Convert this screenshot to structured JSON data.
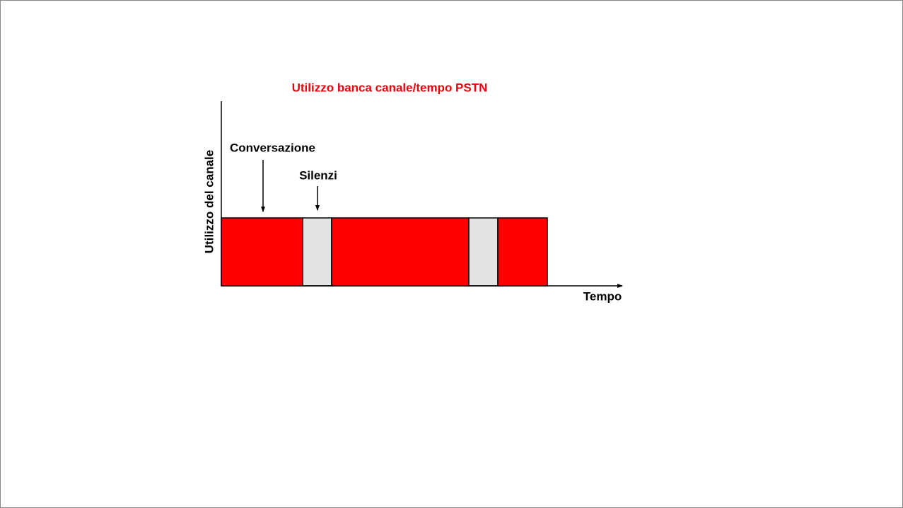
{
  "title": "Utilizzo banca canale/tempo PSTN",
  "y_axis_label": "Utilizzo del canale",
  "x_axis_label": "Tempo",
  "annotations": [
    "Conversazione",
    "Silenzi"
  ]
}
